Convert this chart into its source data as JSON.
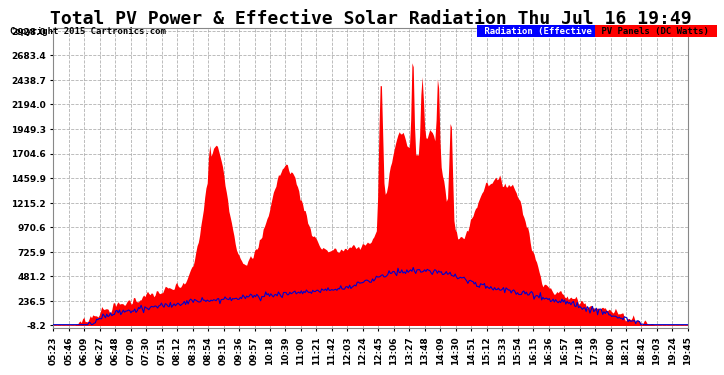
{
  "title": "Total PV Power & Effective Solar Radiation Thu Jul 16 19:49",
  "copyright": "Copyright 2015 Cartronics.com",
  "legend_blue": "Radiation (Effective w/m2)",
  "legend_red": "PV Panels (DC Watts)",
  "yticks": [
    2928.0,
    2683.4,
    2438.7,
    2194.0,
    1949.3,
    1704.6,
    1459.9,
    1215.2,
    970.6,
    725.9,
    481.2,
    236.5,
    -8.2
  ],
  "ymin": -8.2,
  "ymax": 2928.0,
  "bg_color": "#ffffff",
  "plot_bg": "#ffffff",
  "grid_color": "#aaaaaa",
  "xtick_labels": [
    "05:23",
    "05:46",
    "06:09",
    "06:27",
    "06:48",
    "07:09",
    "07:30",
    "07:51",
    "08:12",
    "08:33",
    "08:54",
    "09:15",
    "09:36",
    "09:57",
    "10:18",
    "10:39",
    "11:00",
    "11:21",
    "11:42",
    "12:03",
    "12:24",
    "12:45",
    "13:06",
    "13:27",
    "13:48",
    "14:09",
    "14:30",
    "14:51",
    "15:12",
    "15:33",
    "15:54",
    "16:15",
    "16:36",
    "16:57",
    "17:18",
    "17:39",
    "18:00",
    "18:21",
    "18:42",
    "19:03",
    "19:24",
    "19:45"
  ],
  "title_fontsize": 13,
  "tick_fontsize": 6.5,
  "red_color": "#ff0000",
  "blue_line_color": "#0000cc",
  "text_color": "#000000"
}
